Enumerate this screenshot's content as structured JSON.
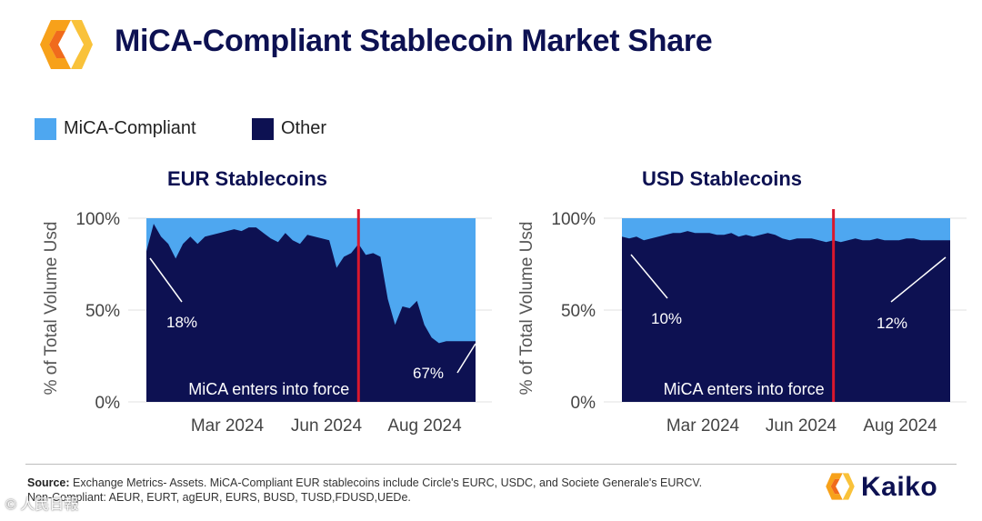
{
  "header": {
    "title": "MiCA-Compliant Stablecoin Market Share"
  },
  "legend": [
    {
      "label": "MiCA-Compliant",
      "color": "#4ea7f0"
    },
    {
      "label": "Other",
      "color": "#0d1152"
    }
  ],
  "colors": {
    "compliant": "#4ea7f0",
    "other": "#0d1152",
    "event_line": "#d9182d",
    "grid": "#e0e0e0"
  },
  "chart_data": [
    {
      "type": "area",
      "title": "EUR Stablecoins",
      "ylabel": "% of Total Volume Usd",
      "ylim": [
        0,
        100
      ],
      "yticks": [
        "0%",
        "50%",
        "100%"
      ],
      "xticks": [
        "Mar 2024",
        "Jun 2024",
        "Aug 2024"
      ],
      "x": [
        0,
        2,
        4,
        6,
        8,
        10,
        12,
        14,
        16,
        18,
        20,
        22,
        24,
        26,
        28,
        30,
        32,
        34,
        36,
        38,
        40,
        42,
        44,
        46,
        48,
        50,
        52,
        54,
        56,
        58,
        60,
        62,
        64,
        66,
        68,
        70,
        72,
        74,
        76,
        78,
        80,
        82,
        84,
        86,
        88,
        90
      ],
      "series": [
        {
          "name": "Other",
          "values": [
            82,
            97,
            90,
            86,
            78,
            86,
            90,
            86,
            90,
            91,
            92,
            93,
            94,
            93,
            95,
            95,
            92,
            89,
            87,
            92,
            88,
            86,
            91,
            90,
            89,
            88,
            73,
            79,
            81,
            86,
            80,
            81,
            79,
            56,
            42,
            52,
            51,
            55,
            42,
            35,
            32,
            33,
            33,
            33,
            33,
            33
          ]
        },
        {
          "name": "MiCA-Compliant",
          "values": [
            18,
            3,
            10,
            14,
            22,
            14,
            10,
            14,
            10,
            9,
            8,
            7,
            6,
            7,
            5,
            5,
            8,
            11,
            13,
            8,
            12,
            14,
            9,
            10,
            11,
            12,
            27,
            21,
            19,
            14,
            20,
            19,
            21,
            44,
            58,
            48,
            49,
            45,
            58,
            65,
            68,
            67,
            67,
            67,
            67,
            67
          ]
        }
      ],
      "event": {
        "label": "MiCA enters into force",
        "x": 58
      },
      "annotations": [
        "18%",
        "67%"
      ]
    },
    {
      "type": "area",
      "title": "USD Stablecoins",
      "ylabel": "% of Total Volume Usd",
      "ylim": [
        0,
        100
      ],
      "yticks": [
        "0%",
        "50%",
        "100%"
      ],
      "xticks": [
        "Mar 2024",
        "Jun 2024",
        "Aug 2024"
      ],
      "x": [
        0,
        2,
        4,
        6,
        8,
        10,
        12,
        14,
        16,
        18,
        20,
        22,
        24,
        26,
        28,
        30,
        32,
        34,
        36,
        38,
        40,
        42,
        44,
        46,
        48,
        50,
        52,
        54,
        56,
        58,
        60,
        62,
        64,
        66,
        68,
        70,
        72,
        74,
        76,
        78,
        80,
        82,
        84,
        86,
        88,
        90
      ],
      "series": [
        {
          "name": "Other",
          "values": [
            90,
            89,
            90,
            88,
            89,
            90,
            91,
            92,
            92,
            93,
            92,
            92,
            92,
            91,
            91,
            92,
            90,
            91,
            90,
            91,
            92,
            91,
            89,
            88,
            89,
            89,
            89,
            88,
            87,
            88,
            87,
            88,
            89,
            88,
            88,
            89,
            88,
            88,
            88,
            89,
            89,
            88,
            88,
            88,
            88,
            88
          ]
        },
        {
          "name": "MiCA-Compliant",
          "values": [
            10,
            11,
            10,
            12,
            11,
            10,
            9,
            8,
            8,
            7,
            8,
            8,
            8,
            9,
            9,
            8,
            10,
            9,
            10,
            9,
            8,
            9,
            11,
            12,
            11,
            11,
            11,
            12,
            13,
            12,
            13,
            12,
            11,
            12,
            12,
            11,
            12,
            12,
            12,
            11,
            11,
            12,
            12,
            12,
            12,
            12
          ]
        }
      ],
      "event": {
        "label": "MiCA enters into force",
        "x": 58
      },
      "annotations": [
        "10%",
        "12%"
      ]
    }
  ],
  "footer": {
    "source_label": "Source:",
    "source_text": "Exchange Metrics- Assets. MiCA-Compliant EUR stablecoins include Circle's EURC, USDC, and Societe Generale's EURCV.",
    "noncompliant_text": "Non-Compliant: AEUR, EURT, agEUR, EURS, BUSD, TUSD,FDUSD,UEDe.",
    "brand": "Kaiko",
    "watermark": "© 人民日報"
  }
}
